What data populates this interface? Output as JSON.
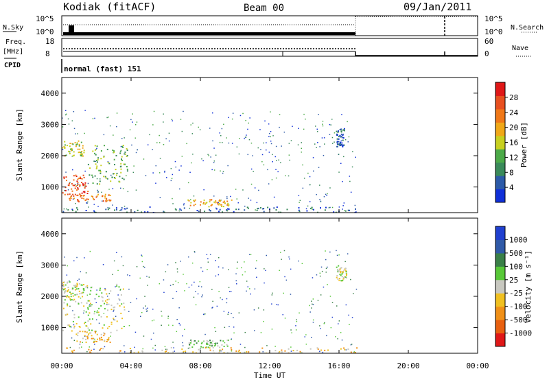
{
  "header": {
    "station": "Kodiak (fitACF)",
    "beam": "Beam 00",
    "date": "09/Jan/2011"
  },
  "panels": {
    "sky_label": "N.Sky",
    "sky_ticks": [
      "10^5",
      "10^0"
    ],
    "search_label": "N.Search",
    "freq_label_1": "Freq.",
    "freq_label_2": "[MHz]",
    "freq_ticks": [
      "18",
      "8"
    ],
    "nave_label": "Nave",
    "nave_ticks": [
      "60",
      "0"
    ],
    "cpid_label": "CPID",
    "cpid_text": "normal (fast) 151"
  },
  "colors": {
    "power": [
      "#1030d8",
      "#2c5aa8",
      "#3a8a5a",
      "#4caa48",
      "#c8d020",
      "#f0a818",
      "#f07818",
      "#e85020",
      "#e01818"
    ],
    "velocity": [
      "#2040d0",
      "#305aa8",
      "#3a8048",
      "#58c838",
      "#c8c8c0",
      "#f0c020",
      "#f09018",
      "#e86010",
      "#e01818"
    ]
  },
  "chart_data": [
    {
      "type": "heatmap",
      "name": "power",
      "xlabel": "",
      "ylabel": "Slant Range [km]",
      "xlim": [
        0,
        24
      ],
      "ylim": [
        180,
        4500
      ],
      "yticks": [
        "1000",
        "2000",
        "3000",
        "4000"
      ],
      "colorbar": {
        "label": "Power [dB]",
        "ticks": [
          "4",
          "8",
          "12",
          "16",
          "20",
          "24",
          "28"
        ]
      },
      "features": [
        {
          "t0": 0.0,
          "t1": 1.5,
          "r0": 750,
          "r1": 1400,
          "level": 7
        },
        {
          "t0": 0.4,
          "t1": 2.8,
          "r0": 550,
          "r1": 800,
          "level": 6
        },
        {
          "t0": 1.5,
          "t1": 3.8,
          "r0": 1100,
          "r1": 2400,
          "level": 3
        },
        {
          "t0": 0.0,
          "t1": 1.3,
          "r0": 2000,
          "r1": 2500,
          "level": 4
        },
        {
          "t0": 7.2,
          "t1": 9.8,
          "r0": 380,
          "r1": 620,
          "level": 5
        },
        {
          "t0": 15.8,
          "t1": 16.3,
          "r0": 2300,
          "r1": 2900,
          "level": 1
        },
        {
          "t0": 0.0,
          "t1": 17.0,
          "r0": 180,
          "r1": 380,
          "level": 1
        }
      ]
    },
    {
      "type": "heatmap",
      "name": "velocity",
      "xlabel": "Time UT",
      "ylabel": "Slant Range [km]",
      "xlim": [
        0,
        24
      ],
      "ylim": [
        180,
        4500
      ],
      "xticks": [
        "00:00",
        "04:00",
        "08:00",
        "12:00",
        "16:00",
        "20:00",
        "00:00"
      ],
      "yticks": [
        "1000",
        "2000",
        "3000",
        "4000"
      ],
      "colorbar": {
        "label": "Velocity [m s⁻¹]",
        "ticks": [
          "1000",
          "500",
          "100",
          "25",
          "-25",
          "-100",
          "-500",
          "-1000"
        ]
      },
      "features": [
        {
          "t0": 0.0,
          "t1": 3.8,
          "r0": 900,
          "r1": 2400,
          "level": 4
        },
        {
          "t0": 0.8,
          "t1": 2.8,
          "r0": 550,
          "r1": 900,
          "level": 5
        },
        {
          "t0": 0.0,
          "t1": 1.2,
          "r0": 2000,
          "r1": 2500,
          "level": 4
        },
        {
          "t0": 7.2,
          "t1": 9.6,
          "r0": 380,
          "r1": 620,
          "level": 3
        },
        {
          "t0": 15.8,
          "t1": 16.4,
          "r0": 2500,
          "r1": 3000,
          "level": 4
        },
        {
          "t0": 0.0,
          "t1": 17.0,
          "r0": 180,
          "r1": 380,
          "level": 5
        }
      ]
    }
  ]
}
